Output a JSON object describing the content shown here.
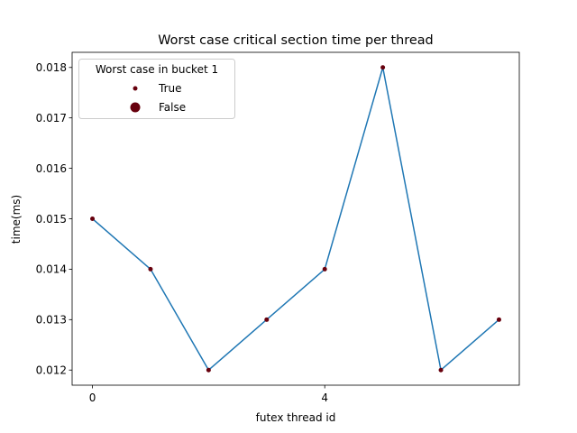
{
  "chart_data": {
    "type": "line",
    "title": "Worst case critical section time per thread",
    "xlabel": "futex thread id",
    "ylabel": "time(ms)",
    "x": [
      0,
      1,
      2,
      3,
      4,
      5,
      6,
      7
    ],
    "series": [
      {
        "values": [
          0.015,
          0.014,
          0.012,
          0.013,
          0.014,
          0.018,
          0.012,
          0.013
        ],
        "color": "#1f77b4"
      }
    ],
    "markers": {
      "worst_case_in_bucket_1": [
        true,
        true,
        true,
        true,
        true,
        true,
        true,
        true
      ],
      "color": "#67000d"
    },
    "xticks": [
      0,
      4
    ],
    "xtick_labels": [
      "0",
      "4"
    ],
    "yticks": [
      0.012,
      0.013,
      0.014,
      0.015,
      0.016,
      0.017,
      0.018
    ],
    "ytick_labels": [
      "0.012",
      "0.013",
      "0.014",
      "0.015",
      "0.016",
      "0.017",
      "0.018"
    ],
    "xlim": [
      -0.35,
      7.35
    ],
    "ylim": [
      0.0117,
      0.0183
    ],
    "grid": false,
    "legend": {
      "title": "Worst case in bucket 1",
      "position": "upper-left",
      "entries": [
        {
          "label": "True",
          "marker": "small-circle"
        },
        {
          "label": "False",
          "marker": "large-circle"
        }
      ]
    }
  }
}
